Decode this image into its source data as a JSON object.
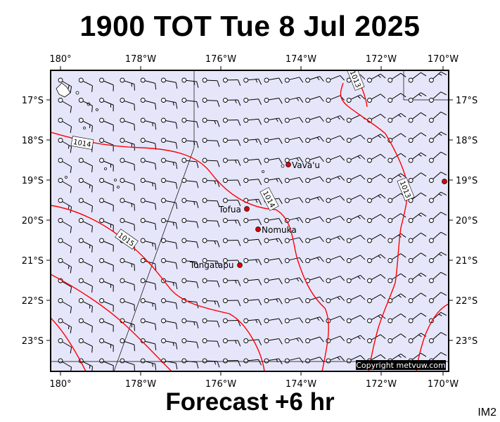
{
  "title": "1900 TOT Tue 8 Jul 2025",
  "footer": "Forecast +6 hr",
  "model_tag": "IM2",
  "credit": "Copyright metvuw.com",
  "colors": {
    "map_background": "#e6e6fb",
    "isobar": "#ff0000",
    "barb": "#000000",
    "place_marker": "#dd0000",
    "credit_background": "#000000"
  },
  "axes": {
    "lon_labels": [
      "180°",
      "178°W",
      "176°W",
      "174°W",
      "172°W",
      "170°W"
    ],
    "lat_labels": [
      "17°S",
      "18°S",
      "19°S",
      "20°S",
      "21°S",
      "22°S",
      "23°S"
    ]
  },
  "places": [
    {
      "name": "Vava'u"
    },
    {
      "name": "Tofua"
    },
    {
      "name": "Nomuka"
    },
    {
      "name": "Tongatapu"
    }
  ],
  "isobars": [
    {
      "label": "1013"
    },
    {
      "label": "1014"
    },
    {
      "label": "1014"
    },
    {
      "label": "1015"
    },
    {
      "label": "1013"
    }
  ],
  "wind_field": {
    "icon": "wind-barb-icon",
    "units": "knots"
  }
}
